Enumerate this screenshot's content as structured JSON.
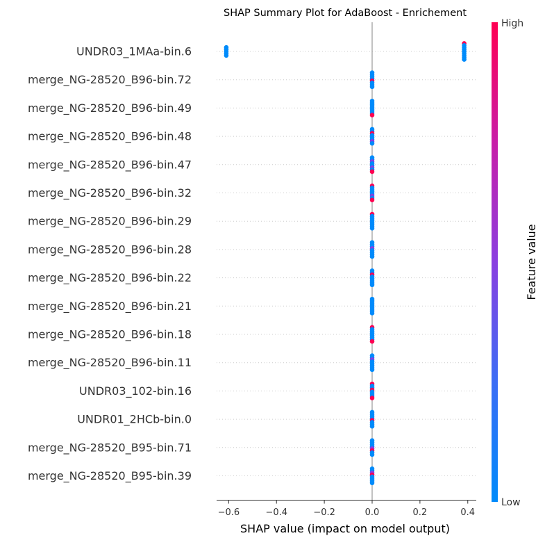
{
  "chart_data": {
    "type": "scatter",
    "subtype": "shap-beeswarm-summary",
    "title": "SHAP Summary Plot for AdaBoost - Enrichement",
    "xlabel": "SHAP value (impact on model output)",
    "xlim": [
      -0.67,
      0.44
    ],
    "xticks": [
      -0.6,
      -0.4,
      -0.2,
      0.0,
      0.2,
      0.4
    ],
    "xtick_labels": [
      "−0.6",
      "−0.4",
      "−0.2",
      "0.0",
      "0.2",
      "0.4"
    ],
    "grid": "horizontal dotted row guides",
    "features": [
      {
        "name": "UNDR03_1MAa-bin.6",
        "clusters": [
          {
            "x": -0.61,
            "values": [
              "low",
              "low",
              "low",
              "low",
              "low"
            ]
          },
          {
            "x": 0.385,
            "values": [
              "high",
              "low",
              "low",
              "low",
              "low",
              "low",
              "low",
              "low",
              "low"
            ]
          }
        ]
      },
      {
        "name": "merge_NG-28520_B96-bin.72",
        "clusters": [
          {
            "x": 0.0,
            "values": [
              "low",
              "low",
              "low",
              "low",
              "high",
              "low",
              "low",
              "low"
            ]
          }
        ]
      },
      {
        "name": "merge_NG-28520_B96-bin.49",
        "clusters": [
          {
            "x": 0.0,
            "values": [
              "low",
              "low",
              "low",
              "low",
              "low",
              "low",
              "low",
              "high"
            ]
          }
        ]
      },
      {
        "name": "merge_NG-28520_B96-bin.48",
        "clusters": [
          {
            "x": 0.0,
            "values": [
              "low",
              "low",
              "high",
              "low",
              "low",
              "low",
              "mid",
              "low"
            ]
          }
        ]
      },
      {
        "name": "merge_NG-28520_B96-bin.47",
        "clusters": [
          {
            "x": 0.0,
            "values": [
              "low",
              "low",
              "mid",
              "low",
              "low",
              "mid",
              "low",
              "high"
            ]
          }
        ]
      },
      {
        "name": "merge_NG-28520_B96-bin.32",
        "clusters": [
          {
            "x": 0.0,
            "values": [
              "high",
              "low",
              "low",
              "low",
              "low",
              "mid",
              "low",
              "high"
            ]
          }
        ]
      },
      {
        "name": "merge_NG-28520_B96-bin.29",
        "clusters": [
          {
            "x": 0.0,
            "values": [
              "high",
              "low",
              "low",
              "low",
              "low",
              "low",
              "low",
              "low"
            ]
          }
        ]
      },
      {
        "name": "merge_NG-28520_B96-bin.28",
        "clusters": [
          {
            "x": 0.0,
            "values": [
              "low",
              "low",
              "low",
              "mid",
              "low",
              "low",
              "low",
              "low"
            ]
          }
        ]
      },
      {
        "name": "merge_NG-28520_B96-bin.22",
        "clusters": [
          {
            "x": 0.0,
            "values": [
              "low",
              "low",
              "high",
              "low",
              "low",
              "low",
              "low",
              "low"
            ]
          }
        ]
      },
      {
        "name": "merge_NG-28520_B96-bin.21",
        "clusters": [
          {
            "x": 0.0,
            "values": [
              "low",
              "low",
              "low",
              "low",
              "low",
              "low",
              "low",
              "low"
            ]
          }
        ]
      },
      {
        "name": "merge_NG-28520_B96-bin.18",
        "clusters": [
          {
            "x": 0.0,
            "values": [
              "high",
              "low",
              "low",
              "low",
              "low",
              "low",
              "low",
              "high"
            ]
          }
        ]
      },
      {
        "name": "merge_NG-28520_B96-bin.11",
        "clusters": [
          {
            "x": 0.0,
            "values": [
              "low",
              "low",
              "mid",
              "low",
              "low",
              "low",
              "low",
              "low"
            ]
          }
        ]
      },
      {
        "name": "UNDR03_102-bin.16",
        "clusters": [
          {
            "x": 0.0,
            "values": [
              "high",
              "low",
              "low",
              "high",
              "low",
              "low",
              "low",
              "high"
            ]
          }
        ]
      },
      {
        "name": "UNDR01_2HCb-bin.0",
        "clusters": [
          {
            "x": 0.0,
            "values": [
              "low",
              "low",
              "low",
              "low",
              "high",
              "low",
              "low",
              "low"
            ]
          }
        ]
      },
      {
        "name": "merge_NG-28520_B95-bin.71",
        "clusters": [
          {
            "x": 0.0,
            "values": [
              "low",
              "low",
              "low",
              "low",
              "mid",
              "high",
              "low",
              "low"
            ]
          }
        ]
      },
      {
        "name": "merge_NG-28520_B95-bin.39",
        "clusters": [
          {
            "x": 0.0,
            "values": [
              "low",
              "low",
              "mid",
              "high",
              "low",
              "low",
              "low",
              "low"
            ]
          }
        ]
      }
    ],
    "colorbar": {
      "label": "Feature value",
      "high_label": "High",
      "low_label": "Low",
      "colors": {
        "high": "#ff0052",
        "mid": "#8a3fe0",
        "low": "#008bfb"
      }
    }
  }
}
